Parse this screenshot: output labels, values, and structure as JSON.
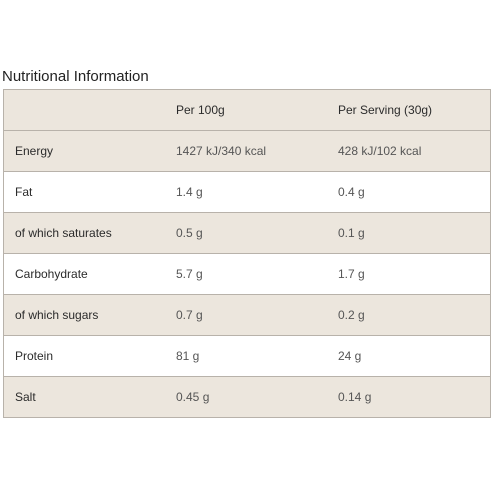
{
  "title": "Nutritional Information",
  "header": {
    "col_label": "",
    "col_per100": "Per 100g",
    "col_serving": "Per Serving (30g)"
  },
  "rows": [
    {
      "label": "Energy",
      "per100": "1427 kJ/340 kcal",
      "serving": "428 kJ/102 kcal"
    },
    {
      "label": "Fat",
      "per100": "1.4 g",
      "serving": "0.4 g"
    },
    {
      "label": "of which saturates",
      "per100": "0.5 g",
      "serving": "0.1 g"
    },
    {
      "label": "Carbohydrate",
      "per100": "5.7 g",
      "serving": "1.7 g"
    },
    {
      "label": "of which sugars",
      "per100": "0.7 g",
      "serving": "0.2 g"
    },
    {
      "label": "Protein",
      "per100": "81 g",
      "serving": "24 g"
    },
    {
      "label": "Salt",
      "per100": "0.45 g",
      "serving": "0.14 g"
    }
  ],
  "colors": {
    "shaded_row": "#ece6dd",
    "border": "#b8b2aa"
  }
}
